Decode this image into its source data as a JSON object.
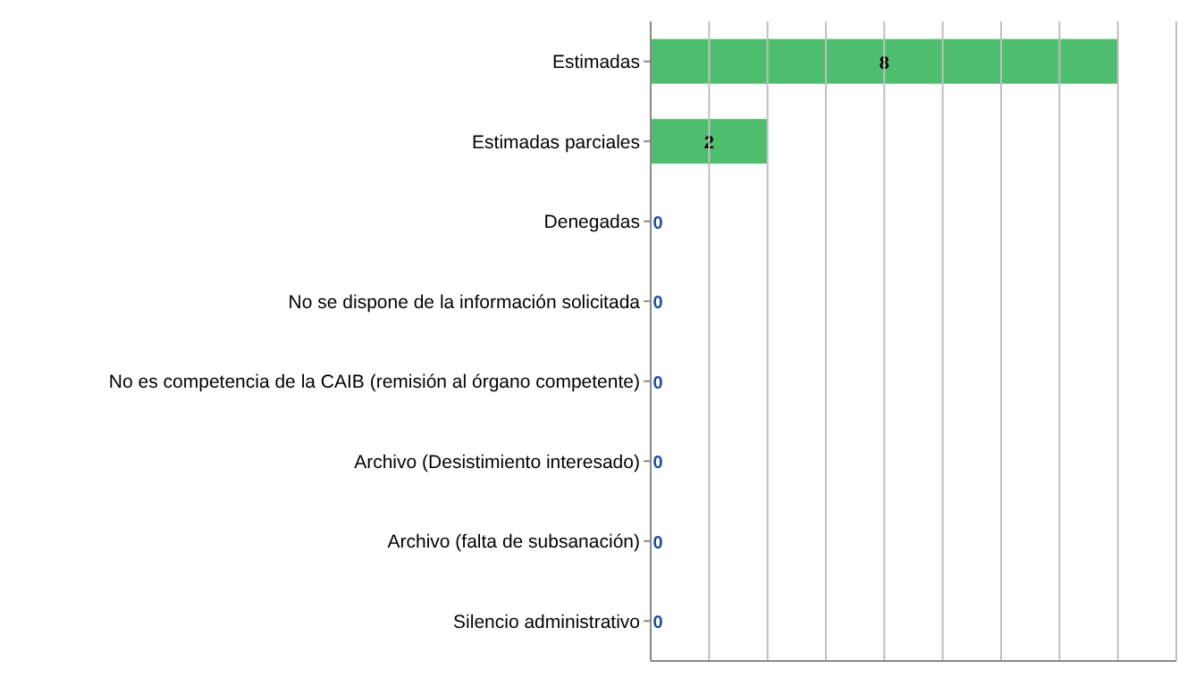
{
  "chart_data": {
    "type": "bar",
    "orientation": "horizontal",
    "categories": [
      "Estimadas",
      "Estimadas parciales",
      "Denegadas",
      "No se dispone de la información solicitada",
      "No es competencia de la CAIB (remisión al órgano competente)",
      "Archivo (Desistimiento interesado)",
      "Archivo (falta de subsanación)",
      "Silencio administrativo"
    ],
    "values": [
      8,
      2,
      0,
      0,
      0,
      0,
      0,
      0
    ],
    "color": "#4fbd6e",
    "xlim": [
      0,
      9
    ],
    "xticks": [
      {
        "value": 0,
        "label": null
      },
      {
        "value": 1,
        "label": null
      },
      {
        "value": 2,
        "label": null
      },
      {
        "value": 3,
        "label": null
      },
      {
        "value": 4,
        "label": null
      },
      {
        "value": 5,
        "label": null
      },
      {
        "value": 6,
        "label": null
      },
      {
        "value": 7,
        "label": null
      },
      {
        "value": 8,
        "label": null
      },
      {
        "value": 9,
        "label": null
      }
    ],
    "grid": "x",
    "tick_labels": "y",
    "data_labels": true
  }
}
